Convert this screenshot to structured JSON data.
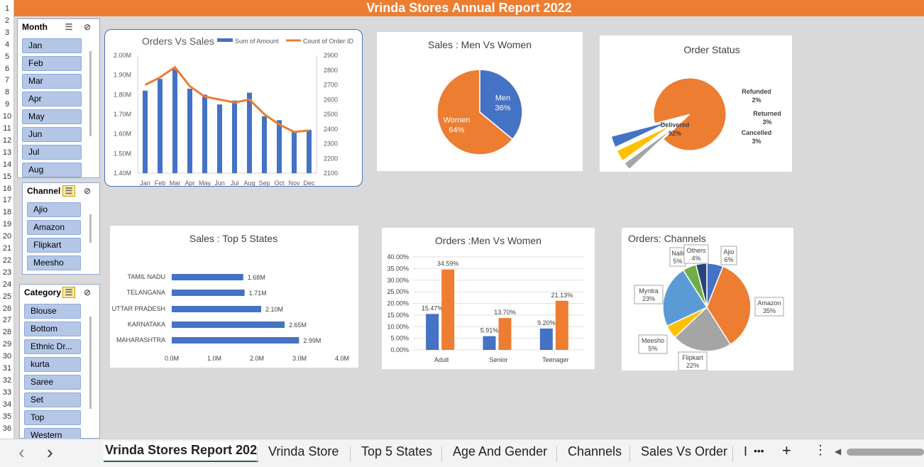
{
  "banner": {
    "title": "Vrinda Stores Annual Report 2022"
  },
  "row_numbers": [
    "1",
    "2",
    "3",
    "4",
    "5",
    "6",
    "7",
    "8",
    "9",
    "10",
    "11",
    "12",
    "13",
    "14",
    "15",
    "16",
    "17",
    "18",
    "19",
    "20",
    "21",
    "22",
    "23",
    "24",
    "25",
    "26",
    "27",
    "28",
    "29",
    "30",
    "31",
    "32",
    "33",
    "34",
    "35",
    "36"
  ],
  "slicers": {
    "month": {
      "title": "Month",
      "items": [
        "Jan",
        "Feb",
        "Mar",
        "Apr",
        "May",
        "Jun",
        "Jul",
        "Aug"
      ]
    },
    "channel": {
      "title": "Channel",
      "items": [
        "Ajio",
        "Amazon",
        "Flipkart",
        "Meesho"
      ]
    },
    "category": {
      "title": "Category",
      "items": [
        "Blouse",
        "Bottom",
        "Ethnic Dr...",
        "kurta",
        "Saree",
        "Set",
        "Top",
        "Western"
      ]
    }
  },
  "colors": {
    "blue": "#4472c4",
    "orange": "#ed7d31",
    "gray": "#a5a5a5",
    "yellow": "#ffc000",
    "lightblue": "#5b9bd5",
    "green": "#70ad47",
    "navy": "#264478",
    "banner": "#ed7d31"
  },
  "chart_data": [
    {
      "type": "bar",
      "title": "Orders Vs Sales",
      "categories": [
        "Jan",
        "Feb",
        "Mar",
        "Apr",
        "May",
        "Jun",
        "Jul",
        "Aug",
        "Sep",
        "Oct",
        "Nov",
        "Dec"
      ],
      "series": [
        {
          "name": "Sum of Amount",
          "type": "bar",
          "axis": "left",
          "values": [
            1.82,
            1.88,
            1.93,
            1.83,
            1.8,
            1.75,
            1.77,
            1.81,
            1.69,
            1.67,
            1.61,
            1.62
          ]
        },
        {
          "name": "Count of Order ID",
          "type": "line",
          "axis": "right",
          "values": [
            2700,
            2750,
            2820,
            2690,
            2620,
            2600,
            2580,
            2600,
            2500,
            2430,
            2380,
            2390
          ]
        }
      ],
      "left_ticks": [
        "2.00M",
        "1.90M",
        "1.80M",
        "1.70M",
        "1.60M",
        "1.50M",
        "1.40M"
      ],
      "right_ticks": [
        "2900",
        "2800",
        "2700",
        "2600",
        "2500",
        "2400",
        "2300",
        "2200",
        "2100"
      ],
      "ylim_left": [
        1.4,
        2.0
      ],
      "ylim_right": [
        2100,
        2900
      ],
      "legend": "top"
    },
    {
      "type": "pie",
      "title": "Sales : Men Vs Women",
      "slices": [
        {
          "label": "Men",
          "value": 36,
          "pct": "36%",
          "color": "#4472c4"
        },
        {
          "label": "Women",
          "value": 64,
          "pct": "64%",
          "color": "#ed7d31"
        }
      ]
    },
    {
      "type": "pie",
      "title": "Order Status",
      "slices": [
        {
          "label": "Delivered",
          "value": 92,
          "pct": "92%",
          "color": "#ed7d31"
        },
        {
          "label": "Refunded",
          "value": 2,
          "pct": "2%",
          "color": "#a5a5a5"
        },
        {
          "label": "Returned",
          "value": 3,
          "pct": "3%",
          "color": "#ffc000"
        },
        {
          "label": "Cancelled",
          "value": 3,
          "pct": "3%",
          "color": "#4472c4"
        }
      ]
    },
    {
      "type": "bar",
      "orientation": "horizontal",
      "title": "Sales : Top 5 States",
      "categories": [
        "TAMIL NADU",
        "TELANGANA",
        "UTTAR PRADESH",
        "KARNATAKA",
        "MAHARASHTRA"
      ],
      "values": [
        1.68,
        1.71,
        2.1,
        2.65,
        2.99
      ],
      "value_labels": [
        "1.68M",
        "1.71M",
        "2.10M",
        "2.65M",
        "2.99M"
      ],
      "x_ticks": [
        "0.0M",
        "1.0M",
        "2.0M",
        "3.0M",
        "4.0M"
      ],
      "xlim": [
        0,
        4.0
      ]
    },
    {
      "type": "bar",
      "title": "Orders :Men Vs Women",
      "categories": [
        "Adult",
        "Senior",
        "Teenager"
      ],
      "series": [
        {
          "values": [
            15.47,
            5.91,
            9.2
          ],
          "labels": [
            "15.47%",
            "5.91%",
            "9.20%"
          ],
          "color": "#4472c4"
        },
        {
          "values": [
            34.59,
            13.7,
            21.13
          ],
          "labels": [
            "34.59%",
            "13.70%",
            "21.13%"
          ],
          "color": "#ed7d31"
        }
      ],
      "y_ticks": [
        "40.00%",
        "35.00%",
        "30.00%",
        "25.00%",
        "20.00%",
        "15.00%",
        "10.00%",
        "5.00%",
        "0.00%"
      ],
      "ylim": [
        0,
        40
      ]
    },
    {
      "type": "pie",
      "title": "Orders: Channels",
      "slices": [
        {
          "label": "Ajio",
          "value": 6,
          "pct": "6%",
          "color": "#4472c4"
        },
        {
          "label": "Amazon",
          "value": 35,
          "pct": "35%",
          "color": "#ed7d31"
        },
        {
          "label": "Flipkart",
          "value": 22,
          "pct": "22%",
          "color": "#a5a5a5"
        },
        {
          "label": "Meesho",
          "value": 5,
          "pct": "5%",
          "color": "#ffc000"
        },
        {
          "label": "Myntra",
          "value": 23,
          "pct": "23%",
          "color": "#5b9bd5"
        },
        {
          "label": "Nalli",
          "value": 5,
          "pct": "5%",
          "color": "#70ad47"
        },
        {
          "label": "Others",
          "value": 4,
          "pct": "4%",
          "color": "#264478"
        }
      ]
    }
  ],
  "sheet_tabs": {
    "prev": "‹",
    "next": "›",
    "items": [
      "Vrinda Stores Report 202",
      "Vrinda Store",
      "Top 5 States",
      "Age And Gender",
      "Channels",
      "Sales Vs Order",
      "I"
    ],
    "active": 0,
    "more": "•••",
    "add": "+",
    "menu": "⋮"
  }
}
